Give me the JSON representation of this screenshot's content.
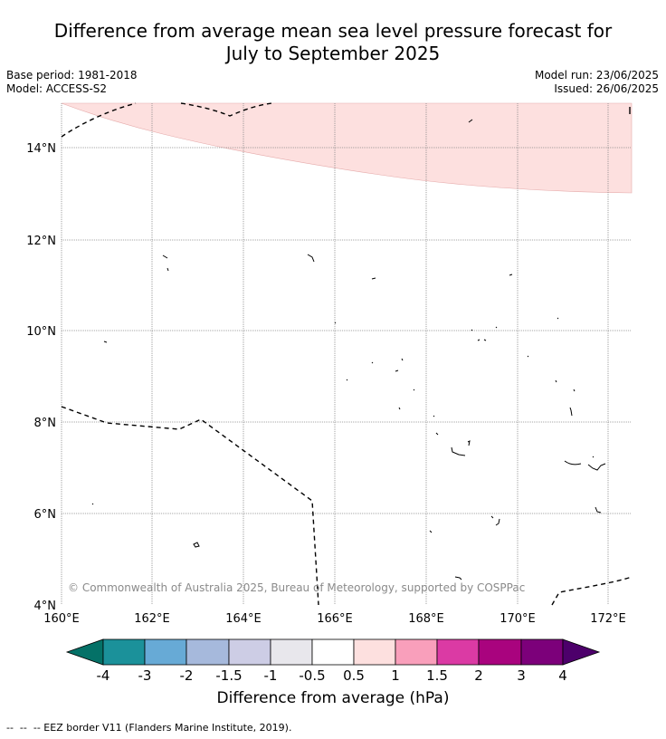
{
  "title_line1": "Difference from average mean sea level pressure forecast for",
  "title_line2": "July to September 2025",
  "base_period": "Base period: 1981-2018",
  "model": "Model: ACCESS-S2",
  "model_run": "Model run: 23/06/2025",
  "issued": "Issued: 26/06/2025",
  "copyright": "© Commonwealth of Australia 2025, Bureau of Meteorology, supported by COSPPac",
  "map": {
    "lat_labels": [
      "14°N",
      "12°N",
      "10°N",
      "8°N",
      "6°N",
      "4°N"
    ],
    "lon_labels": [
      "160°E",
      "162°E",
      "164°E",
      "166°E",
      "168°E",
      "170°E",
      "172°E"
    ],
    "anomaly_region_color": "#fde0df"
  },
  "colorbar": {
    "title": "Difference from average (hPa)",
    "tick_labels": [
      "-4",
      "-3",
      "-2",
      "-1.5",
      "-1",
      "-0.5",
      "0.5",
      "1",
      "1.5",
      "2",
      "3",
      "4"
    ],
    "colors": [
      "#047167",
      "#1b919a",
      "#67aad6",
      "#a6b9dc",
      "#cdcde5",
      "#e8e7ec",
      "#ffffff",
      "#fde0df",
      "#f99fbb",
      "#db3aa4",
      "#a9037e",
      "#7c007a",
      "#4d006b"
    ]
  },
  "legend_text": "--  --  -- EEZ border V11 (Flanders Marine Institute, 2019)."
}
